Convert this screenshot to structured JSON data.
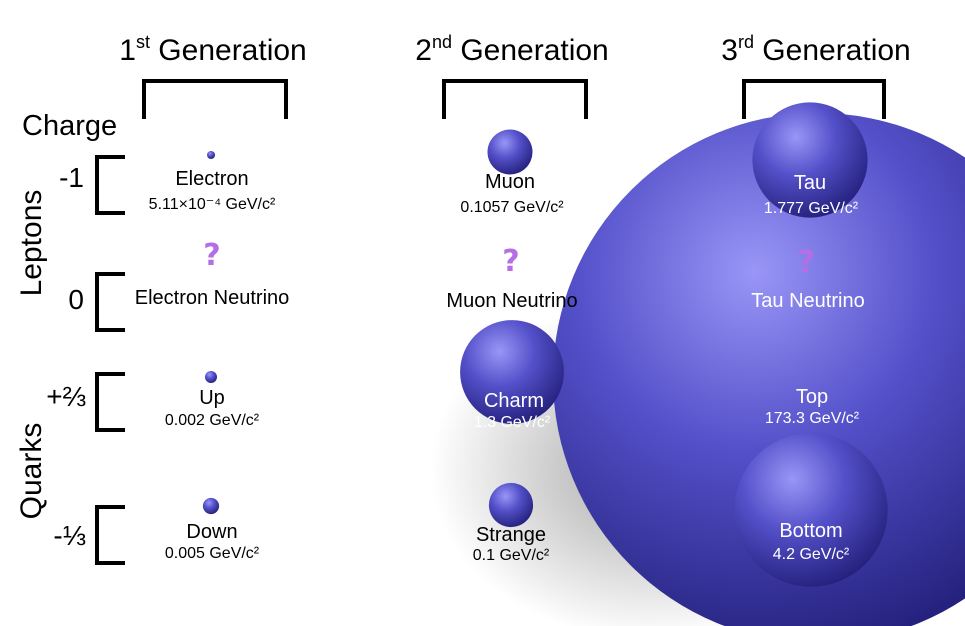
{
  "generations": [
    {
      "ordinal": "1",
      "suffix": "st",
      "label": "Generation"
    },
    {
      "ordinal": "2",
      "suffix": "nd",
      "label": "Generation"
    },
    {
      "ordinal": "3",
      "suffix": "rd",
      "label": "Generation"
    }
  ],
  "axis": {
    "charge": "Charge",
    "leptons": "Leptons",
    "quarks": "Quarks"
  },
  "charges": [
    "-1",
    "0",
    "+⅔",
    "-⅓"
  ],
  "unknown_mass_symbol": "?",
  "particles": {
    "electron": {
      "name": "Electron",
      "mass": "5.11×10⁻⁴ GeV/c²",
      "mass_gev": 0.000511
    },
    "muon": {
      "name": "Muon",
      "mass": "0.1057 GeV/c²",
      "mass_gev": 0.1057
    },
    "tau": {
      "name": "Tau",
      "mass": "1.777 GeV/c²",
      "mass_gev": 1.777
    },
    "electron_neutrino": {
      "name": "Electron Neutrino"
    },
    "muon_neutrino": {
      "name": "Muon Neutrino"
    },
    "tau_neutrino": {
      "name": "Tau Neutrino"
    },
    "up": {
      "name": "Up",
      "mass": "0.002 GeV/c²",
      "mass_gev": 0.002
    },
    "charm": {
      "name": "Charm",
      "mass": "1.3 GeV/c²",
      "mass_gev": 1.3
    },
    "top": {
      "name": "Top",
      "mass": "173.3 GeV/c²",
      "mass_gev": 173.3
    },
    "down": {
      "name": "Down",
      "mass": "0.005 GeV/c²",
      "mass_gev": 0.005
    },
    "strange": {
      "name": "Strange",
      "mass": "0.1 GeV/c²",
      "mass_gev": 0.1
    },
    "bottom": {
      "name": "Bottom",
      "mass": "4.2 GeV/c²",
      "mass_gev": 4.2
    }
  },
  "colors": {
    "sphere_light": "#8f8cf5",
    "sphere_mid": "#4e4ac4",
    "sphere_dark": "#221f7a",
    "question": "#b56ee6"
  }
}
